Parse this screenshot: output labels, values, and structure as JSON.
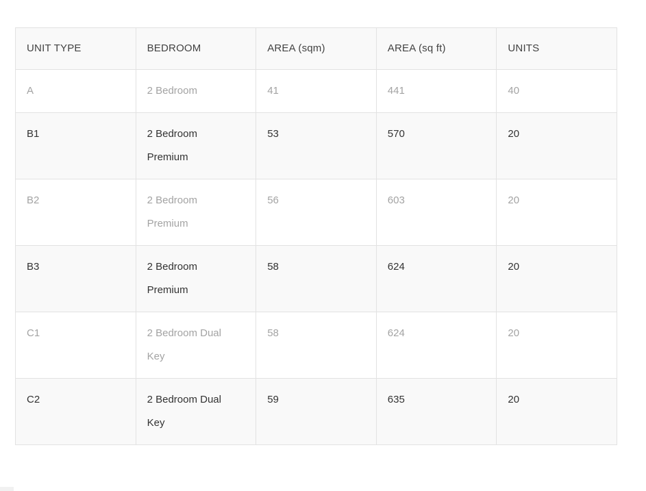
{
  "page": {
    "background": "#ffffff"
  },
  "table": {
    "columns": [
      "UNIT TYPE",
      "BEDROOM",
      "AREA (sqm)",
      "AREA (sq ft)",
      "UNITS"
    ],
    "rows": [
      {
        "unit_type": "A",
        "bedroom": "2 Bedroom",
        "area_sqm": "41",
        "area_sqft": "441",
        "units": "40"
      },
      {
        "unit_type": "B1",
        "bedroom": "2 Bedroom Premium",
        "area_sqm": "53",
        "area_sqft": "570",
        "units": "20"
      },
      {
        "unit_type": "B2",
        "bedroom": "2 Bedroom Premium",
        "area_sqm": "56",
        "area_sqft": "603",
        "units": "20"
      },
      {
        "unit_type": "B3",
        "bedroom": "2 Bedroom Premium",
        "area_sqm": "58",
        "area_sqft": "624",
        "units": "20"
      },
      {
        "unit_type": "C1",
        "bedroom": "2 Bedroom Dual Key",
        "area_sqm": "58",
        "area_sqft": "624",
        "units": "20"
      },
      {
        "unit_type": "C2",
        "bedroom": "2 Bedroom Dual Key",
        "area_sqm": "59",
        "area_sqft": "635",
        "units": "20"
      }
    ],
    "colors": {
      "border": "#e2e2e2",
      "header_bg": "#f9f9f9",
      "stripe_bg": "#f9f9f9",
      "text_dark": "#323232",
      "text_muted": "#a3a3a3"
    }
  }
}
